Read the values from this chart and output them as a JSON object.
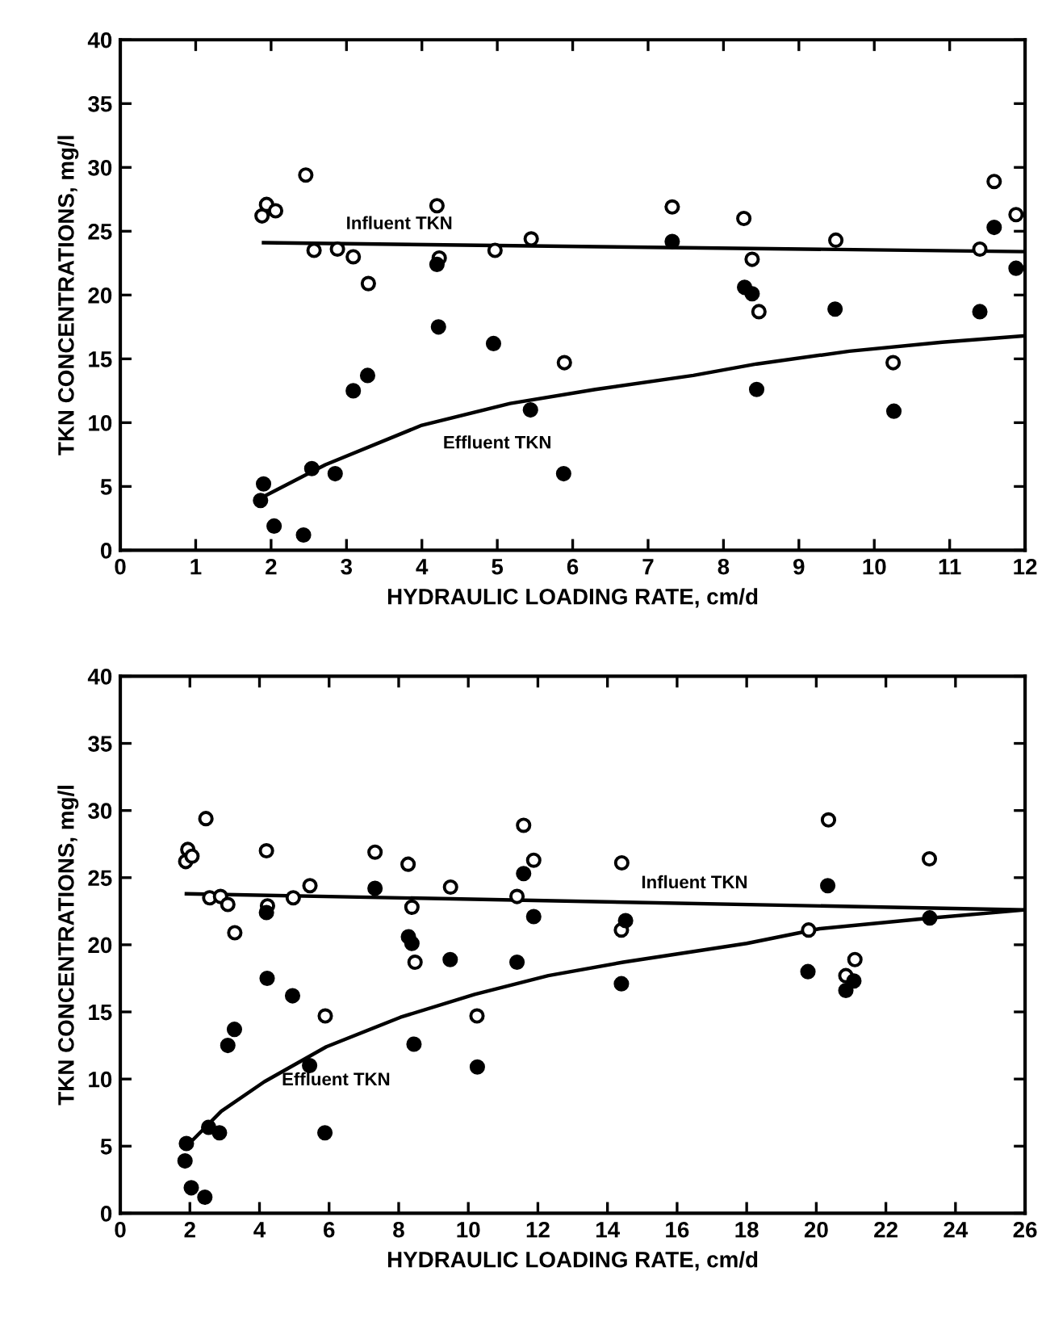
{
  "chart_data": [
    {
      "type": "scatter",
      "xlabel": "HYDRAULIC LOADING RATE, cm/d",
      "ylabel": "TKN CONCENTRATIONS, mg/l",
      "xlim": [
        0,
        12
      ],
      "xticks": [
        0,
        1,
        2,
        3,
        4,
        5,
        6,
        7,
        8,
        9,
        10,
        11,
        12
      ],
      "ylim": [
        0,
        40
      ],
      "yticks": [
        0,
        5,
        10,
        15,
        20,
        25,
        30,
        35,
        40
      ],
      "grid": false,
      "legend": false,
      "series": [
        {
          "color": "#ffffff",
          "marker": "circle",
          "x": [
            1.88,
            1.94,
            2.06,
            2.46,
            2.57,
            2.88,
            3.09,
            3.29,
            4.2,
            4.23,
            4.97,
            5.45,
            5.89,
            7.32,
            8.27,
            8.38,
            8.47,
            9.49,
            10.25,
            11.4,
            11.59,
            11.88
          ],
          "values": [
            26.2,
            27.1,
            26.6,
            29.4,
            23.5,
            23.6,
            23.0,
            20.9,
            27.0,
            22.9,
            23.5,
            24.4,
            14.7,
            26.9,
            26.0,
            22.8,
            18.7,
            24.3,
            14.7,
            23.6,
            28.9,
            26.3
          ]
        },
        {
          "color": "#000000",
          "marker": "circle",
          "x": [
            1.86,
            1.9,
            2.04,
            2.43,
            2.54,
            2.85,
            3.09,
            3.28,
            4.2,
            4.22,
            4.95,
            5.44,
            5.88,
            7.32,
            8.28,
            8.38,
            8.44,
            9.48,
            10.26,
            11.4,
            11.59,
            11.88
          ],
          "values": [
            3.9,
            5.2,
            1.9,
            1.2,
            6.4,
            6.0,
            12.5,
            13.7,
            22.4,
            17.5,
            16.2,
            11.0,
            6.0,
            24.2,
            20.6,
            20.1,
            12.6,
            18.9,
            10.9,
            18.7,
            25.3,
            22.1
          ]
        },
        {
          "type": "line",
          "color": "#000000",
          "line_style": "solid",
          "x": [
            1.9,
            12
          ],
          "values": [
            24.1,
            23.4
          ]
        },
        {
          "type": "line",
          "color": "#000000",
          "line_style": "solid",
          "x": [
            1.9,
            2.72,
            4.0,
            5.17,
            6.3,
            7.6,
            8.44,
            9.67,
            10.9,
            12.0
          ],
          "values": [
            4.2,
            6.7,
            9.8,
            11.5,
            12.6,
            13.7,
            14.6,
            15.6,
            16.3,
            16.8
          ]
        }
      ],
      "annotations": [
        {
          "text": "Influent TKN",
          "x": 3.7,
          "y": 24.0
        },
        {
          "text": "Effluent TKN",
          "x": 5.0,
          "y": 11.2
        }
      ]
    },
    {
      "type": "scatter",
      "xlabel": "HYDRAULIC LOADING RATE, cm/d",
      "ylabel": "TKN CONCENTRATIONS, mg/l",
      "xlim": [
        0,
        26
      ],
      "xticks": [
        0,
        2,
        4,
        6,
        8,
        10,
        12,
        14,
        16,
        18,
        20,
        22,
        24,
        26
      ],
      "ylim": [
        0,
        40
      ],
      "yticks": [
        0,
        5,
        10,
        15,
        20,
        25,
        30,
        35,
        40
      ],
      "grid": false,
      "legend": false,
      "series": [
        {
          "color": "#ffffff",
          "marker": "circle",
          "x": [
            1.88,
            1.94,
            2.06,
            2.46,
            2.57,
            2.88,
            3.09,
            3.29,
            4.2,
            4.23,
            4.97,
            5.45,
            5.89,
            7.32,
            8.27,
            8.38,
            8.47,
            9.49,
            10.25,
            11.4,
            11.59,
            11.88,
            14.41,
            14.4,
            19.78,
            20.35,
            20.85,
            21.11,
            23.25
          ],
          "values": [
            26.2,
            27.1,
            26.6,
            29.4,
            23.5,
            23.6,
            23.0,
            20.9,
            27.0,
            22.9,
            23.5,
            24.4,
            14.7,
            26.9,
            26.0,
            22.8,
            18.7,
            24.3,
            14.7,
            23.6,
            28.9,
            26.3,
            26.1,
            21.1,
            21.1,
            29.3,
            17.7,
            18.9,
            26.4
          ]
        },
        {
          "color": "#000000",
          "marker": "circle",
          "x": [
            1.86,
            1.9,
            2.04,
            2.43,
            2.54,
            2.85,
            3.09,
            3.28,
            4.2,
            4.22,
            4.95,
            5.44,
            5.88,
            7.32,
            8.28,
            8.38,
            8.44,
            9.48,
            10.26,
            11.4,
            11.59,
            11.88,
            14.52,
            14.4,
            19.76,
            20.33,
            20.85,
            21.08,
            23.26
          ],
          "values": [
            3.9,
            5.2,
            1.9,
            1.2,
            6.4,
            6.0,
            12.5,
            13.7,
            22.4,
            17.5,
            16.2,
            11.0,
            6.0,
            24.2,
            20.6,
            20.1,
            12.6,
            18.9,
            10.9,
            18.7,
            25.3,
            22.1,
            21.8,
            17.1,
            18.0,
            24.4,
            16.6,
            17.3,
            22.0
          ]
        },
        {
          "type": "line",
          "color": "#000000",
          "line_style": "solid",
          "x": [
            1.9,
            26
          ],
          "values": [
            23.8,
            22.6
          ]
        },
        {
          "type": "line",
          "color": "#000000",
          "line_style": "solid",
          "x": [
            1.87,
            2.9,
            4.14,
            5.92,
            8.05,
            10.18,
            12.3,
            14.45,
            18.0,
            20.1,
            23.3,
            26.0
          ],
          "values": [
            4.9,
            7.6,
            9.8,
            12.4,
            14.6,
            16.3,
            17.7,
            18.7,
            20.1,
            21.2,
            22.0,
            22.6
          ]
        }
      ],
      "annotations": [
        {
          "text": "Influent TKN",
          "x": 16.5,
          "y": 23.1
        },
        {
          "text": "Effluent TKN",
          "x": 6.2,
          "y": 12.6
        }
      ]
    }
  ]
}
